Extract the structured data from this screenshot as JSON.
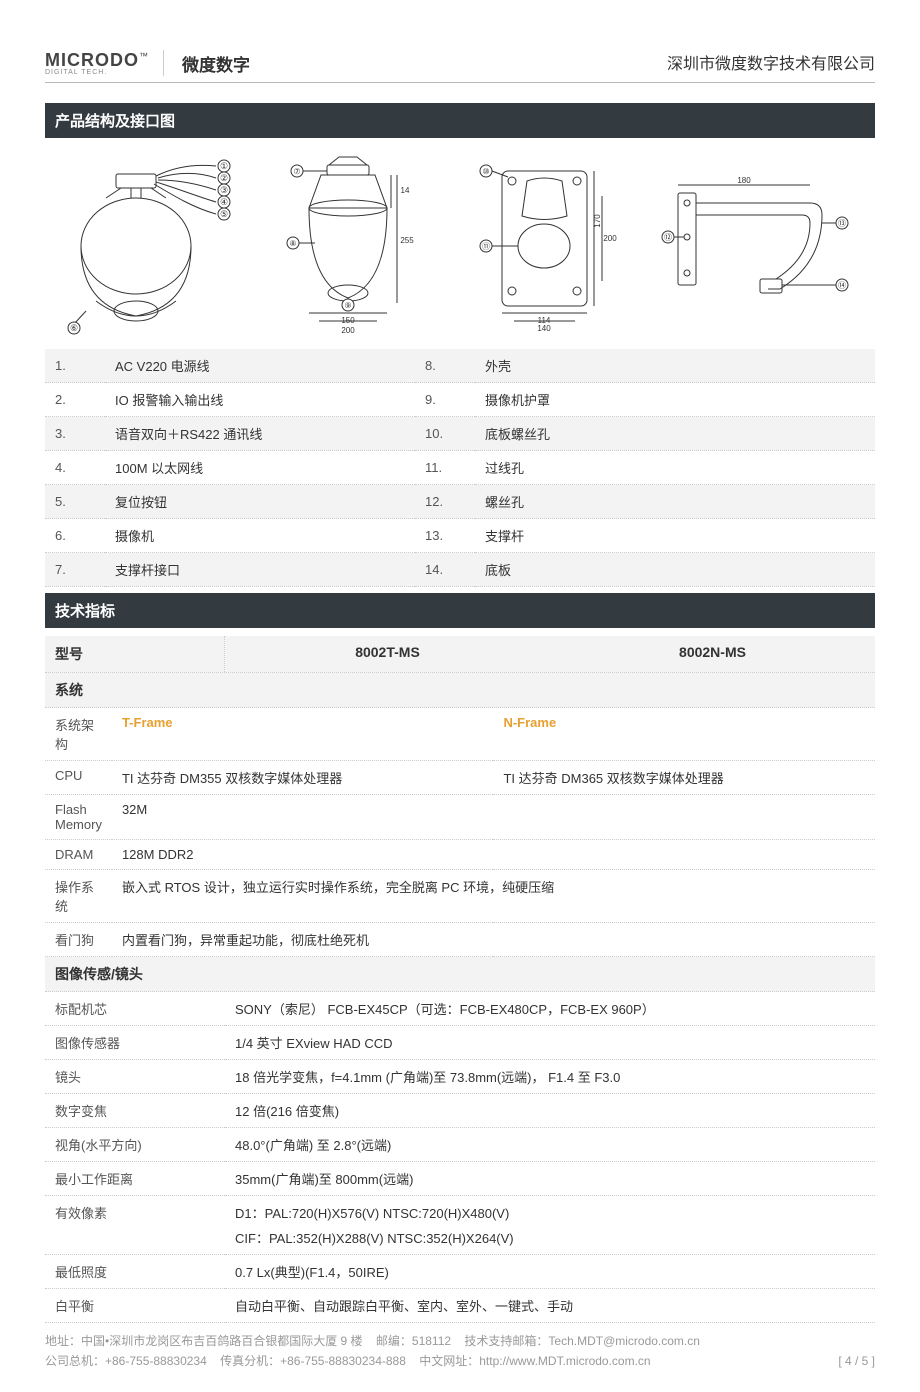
{
  "header": {
    "logo_main": "MICRODO",
    "logo_tm": "™",
    "logo_sub": "DIGITAL TECH.",
    "brand_cn": "微度数字",
    "company": "深圳市微度数字技术有限公司"
  },
  "section1_title": "产品结构及接口图",
  "parts": [
    {
      "n1": "1.",
      "l1": "AC V220 电源线",
      "n2": "8.",
      "l2": "外壳"
    },
    {
      "n1": "2.",
      "l1": "IO 报警输入输出线",
      "n2": "9.",
      "l2": "摄像机护罩"
    },
    {
      "n1": "3.",
      "l1": "语音双向＋RS422 通讯线",
      "n2": "10.",
      "l2": "底板螺丝孔"
    },
    {
      "n1": "4.",
      "l1": "100M 以太网线",
      "n2": "11.",
      "l2": "过线孔"
    },
    {
      "n1": "5.",
      "l1": "复位按钮",
      "n2": "12.",
      "l2": "螺丝孔"
    },
    {
      "n1": "6.",
      "l1": "摄像机",
      "n2": "13.",
      "l2": "支撑杆"
    },
    {
      "n1": "7.",
      "l1": "支撑杆接口",
      "n2": "14.",
      "l2": "底板"
    }
  ],
  "section2_title": "技术指标",
  "models": {
    "header": "型号",
    "col1": "8002T-MS",
    "col2": "8002N-MS"
  },
  "sys_header": "系统",
  "sys_rows": [
    {
      "k": "系统架构",
      "v1": "T-Frame",
      "v2": "N-Frame",
      "highlight": true,
      "split": true
    },
    {
      "k": "CPU",
      "v1": "TI 达芬奇 DM355 双核数字媒体处理器",
      "v2": "TI 达芬奇 DM365 双核数字媒体处理器",
      "split": true
    },
    {
      "k": "Flash Memory",
      "v": "32M"
    },
    {
      "k": "DRAM",
      "v": "128M DDR2"
    },
    {
      "k": "操作系统",
      "v": "嵌入式 RTOS 设计，独立运行实时操作系统，完全脱离 PC 环境，纯硬压缩"
    },
    {
      "k": "看门狗",
      "v": "内置看门狗，异常重起功能，彻底杜绝死机"
    }
  ],
  "img_header": "图像传感/镜头",
  "img_rows": [
    {
      "k": "标配机芯",
      "v": "SONY（索尼） FCB-EX45CP（可选：FCB-EX480CP，FCB-EX 960P）"
    },
    {
      "k": "图像传感器",
      "v": "1/4 英寸 EXview HAD CCD"
    },
    {
      "k": "镜头",
      "v": "18 倍光学变焦，f=4.1mm (广角端)至 73.8mm(远端)， F1.4 至 F3.0"
    },
    {
      "k": "数字变焦",
      "v": "12 倍(216 倍变焦)"
    },
    {
      "k": "视角(水平方向)",
      "v": "48.0°(广角端) 至 2.8°(远端)"
    },
    {
      "k": "最小工作距离",
      "v": "35mm(广角端)至 800mm(远端)"
    },
    {
      "k": "有效像素",
      "v": "D1：PAL:720(H)X576(V)   NTSC:720(H)X480(V)",
      "v_line2": "CIF：PAL:352(H)X288(V)   NTSC:352(H)X264(V)"
    },
    {
      "k": "最低照度",
      "v": "0.7 Lx(典型)(F1.4，50IRE)"
    },
    {
      "k": "白平衡",
      "v": "自动白平衡、自动跟踪白平衡、室内、室外、一键式、手动"
    }
  ],
  "footer": {
    "line1_a": "地址：中国•深圳市龙岗区布吉百鸽路百合银都国际大厦 9 楼",
    "line1_b": "邮编：518112",
    "line1_c": "技术支持邮箱：Tech.MDT@microdo.com.cn",
    "line2_a": "公司总机：+86-755-88830234",
    "line2_b": "传真分机：+86-755-88830234-888",
    "line2_c": "中文网址：http://www.MDT.microdo.com.cn",
    "page": "[ 4 / 5 ]"
  },
  "colors": {
    "section_bg": "#333a40",
    "alt_bg": "#f3f3f3",
    "dotted": "#cccccc",
    "highlight": "#e8a030",
    "text": "#333333",
    "muted": "#999999"
  }
}
